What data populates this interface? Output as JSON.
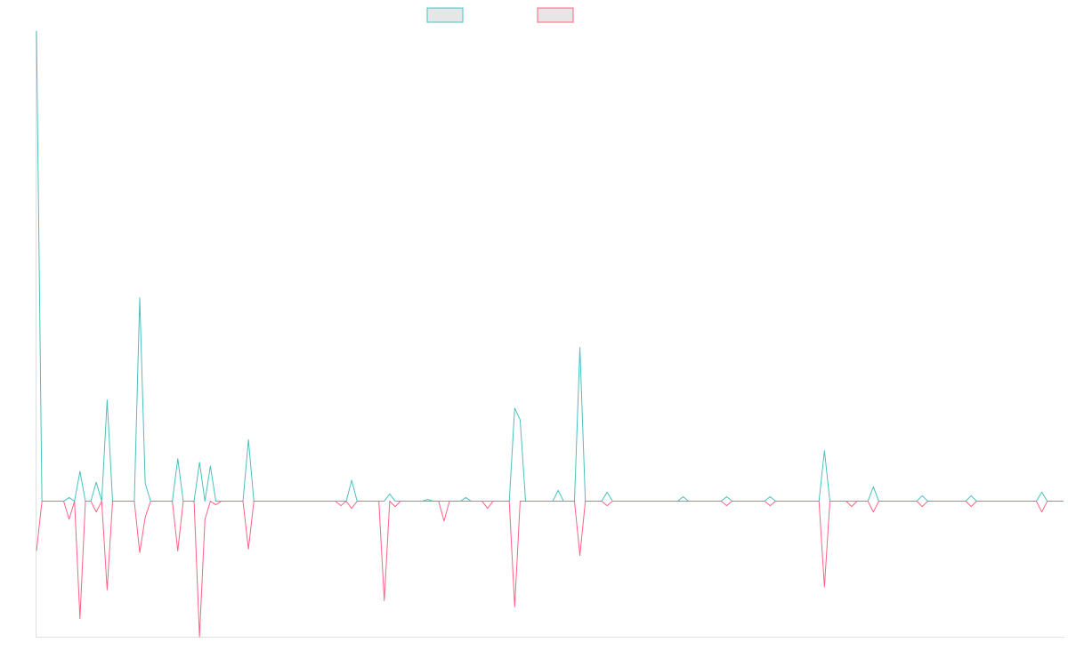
{
  "chart_data": {
    "type": "line",
    "title": "",
    "xlabel": "",
    "ylabel": "",
    "grid": false,
    "legend_placement": "top-center",
    "ylim": [
      -150,
      520
    ],
    "x_count": 190,
    "series": [
      {
        "color": "#4bc0c0",
        "fill": "#e6e6e6",
        "points": [
          [
            0,
            520
          ],
          [
            6,
            4
          ],
          [
            7,
            0
          ],
          [
            8,
            33
          ],
          [
            9,
            0
          ],
          [
            11,
            21
          ],
          [
            12,
            0
          ],
          [
            13,
            112
          ],
          [
            14,
            0
          ],
          [
            15,
            0
          ],
          [
            19,
            225
          ],
          [
            20,
            20
          ],
          [
            21,
            0
          ],
          [
            26,
            47
          ],
          [
            27,
            0
          ],
          [
            30,
            43
          ],
          [
            31,
            0
          ],
          [
            32,
            39
          ],
          [
            33,
            0
          ],
          [
            39,
            68
          ],
          [
            40,
            0
          ],
          [
            58,
            23
          ],
          [
            59,
            0
          ],
          [
            65,
            8
          ],
          [
            66,
            0
          ],
          [
            72,
            2
          ],
          [
            73,
            0
          ],
          [
            79,
            4
          ],
          [
            80,
            0
          ],
          [
            88,
            103
          ],
          [
            89,
            90
          ],
          [
            90,
            0
          ],
          [
            96,
            12
          ],
          [
            97,
            0
          ],
          [
            100,
            170
          ],
          [
            101,
            0
          ],
          [
            105,
            10
          ],
          [
            106,
            0
          ],
          [
            119,
            5
          ],
          [
            120,
            0
          ],
          [
            127,
            5
          ],
          [
            128,
            0
          ],
          [
            135,
            5
          ],
          [
            136,
            0
          ],
          [
            145,
            56
          ],
          [
            146,
            0
          ],
          [
            154,
            16
          ],
          [
            155,
            0
          ],
          [
            163,
            6
          ],
          [
            164,
            0
          ],
          [
            172,
            6
          ],
          [
            173,
            0
          ],
          [
            185,
            10
          ],
          [
            186,
            0
          ],
          [
            189,
            0
          ]
        ]
      },
      {
        "color": "#ff6384",
        "fill": "#e6e6e6",
        "points": [
          [
            0,
            -55
          ],
          [
            1,
            0
          ],
          [
            6,
            -20
          ],
          [
            7,
            0
          ],
          [
            8,
            -130
          ],
          [
            9,
            0
          ],
          [
            11,
            -12
          ],
          [
            12,
            0
          ],
          [
            13,
            -98
          ],
          [
            14,
            0
          ],
          [
            19,
            -57
          ],
          [
            20,
            -18
          ],
          [
            21,
            0
          ],
          [
            26,
            -55
          ],
          [
            27,
            0
          ],
          [
            30,
            -150
          ],
          [
            31,
            -20
          ],
          [
            32,
            0
          ],
          [
            33,
            -4
          ],
          [
            34,
            0
          ],
          [
            39,
            -53
          ],
          [
            40,
            0
          ],
          [
            56,
            -5
          ],
          [
            57,
            0
          ],
          [
            58,
            -8
          ],
          [
            59,
            0
          ],
          [
            64,
            -110
          ],
          [
            65,
            0
          ],
          [
            66,
            -6
          ],
          [
            67,
            0
          ],
          [
            75,
            -22
          ],
          [
            76,
            0
          ],
          [
            83,
            -8
          ],
          [
            84,
            0
          ],
          [
            88,
            -117
          ],
          [
            89,
            0
          ],
          [
            100,
            -60
          ],
          [
            101,
            0
          ],
          [
            105,
            -5
          ],
          [
            106,
            0
          ],
          [
            127,
            -5
          ],
          [
            128,
            0
          ],
          [
            135,
            -5
          ],
          [
            136,
            0
          ],
          [
            145,
            -95
          ],
          [
            146,
            0
          ],
          [
            150,
            -6
          ],
          [
            151,
            0
          ],
          [
            154,
            -12
          ],
          [
            155,
            0
          ],
          [
            163,
            -6
          ],
          [
            164,
            0
          ],
          [
            172,
            -6
          ],
          [
            173,
            0
          ],
          [
            185,
            -12
          ],
          [
            186,
            0
          ],
          [
            189,
            0
          ]
        ]
      }
    ]
  }
}
